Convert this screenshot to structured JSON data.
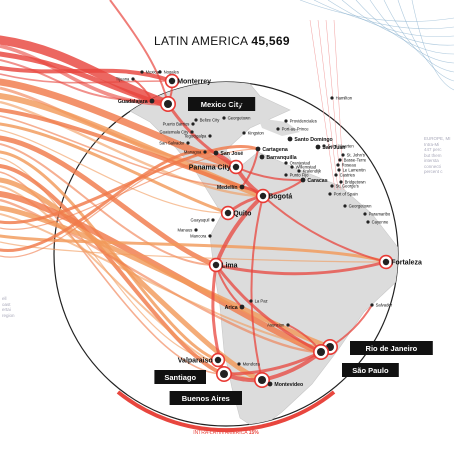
{
  "title": {
    "region": "LATIN AMERICA",
    "total": "45,569"
  },
  "footer": {
    "label": "INTRA-LATIN AMERICA",
    "value": "15%"
  },
  "side_notes": {
    "right": [
      "EUROPE, MI",
      "Intra-Mi",
      "447 perc",
      "but them",
      "intersta",
      "connecti",
      "percent c"
    ],
    "left": [
      "ell",
      "oast",
      "ertai",
      "region"
    ]
  },
  "colors": {
    "route_hot": "#e8463e",
    "route_warm": "#f07a4a",
    "route_orange": "#f29a5a",
    "hub": "#e83a34",
    "globe_fill": "#ffffff",
    "land": "#dcdcdc",
    "box_label": "#111111",
    "accent_arc": "#e8463e",
    "blue_lines": "#7aa6c8"
  },
  "cities": [
    {
      "id": "mexicali",
      "name": "Mexicali",
      "size": "xs"
    },
    {
      "id": "nogales",
      "name": "Nogales",
      "size": "xs"
    },
    {
      "id": "tijuana",
      "name": "Tijuana",
      "size": "xs"
    },
    {
      "id": "monterrey",
      "name": "Monterrey",
      "size": "m"
    },
    {
      "id": "guadalajara",
      "name": "Guadalajara",
      "size": "s"
    },
    {
      "id": "mexico_city",
      "name": "Mexico City",
      "size": "boxed"
    },
    {
      "id": "nassau",
      "name": "Nassau",
      "size": "xs"
    },
    {
      "id": "hamilton",
      "name": "Hamilton",
      "size": "xs"
    },
    {
      "id": "georgetown_ky",
      "name": "Georgetown",
      "size": "xs"
    },
    {
      "id": "providenciales",
      "name": "Providenciales",
      "size": "xs"
    },
    {
      "id": "belize_city",
      "name": "Belize City",
      "size": "xs"
    },
    {
      "id": "puerto_barrios",
      "name": "Puerto Barrios",
      "size": "xs"
    },
    {
      "id": "guatemala_city",
      "name": "Guatemala City",
      "size": "xs"
    },
    {
      "id": "tegucigalpa",
      "name": "Tegucigalpa",
      "size": "xs"
    },
    {
      "id": "kingston",
      "name": "Kingston",
      "size": "xs"
    },
    {
      "id": "port_au_prince",
      "name": "Port-au-Prince",
      "size": "xs"
    },
    {
      "id": "san_salvador",
      "name": "San Salvador",
      "size": "xs"
    },
    {
      "id": "santo_domingo",
      "name": "Santo Domingo",
      "size": "s"
    },
    {
      "id": "managua",
      "name": "Managua",
      "size": "xs"
    },
    {
      "id": "san_juan",
      "name": "San Juan",
      "size": "s"
    },
    {
      "id": "san_jose",
      "name": "San José",
      "size": "s"
    },
    {
      "id": "cartagena",
      "name": "Cartagena",
      "size": "s"
    },
    {
      "id": "barranquilla",
      "name": "Barranquilla",
      "size": "s"
    },
    {
      "id": "oranjestad",
      "name": "Oranjestad",
      "size": "xs"
    },
    {
      "id": "willemstad",
      "name": "Willemstad",
      "size": "xs"
    },
    {
      "id": "kralendijk",
      "name": "Kralendijk",
      "size": "xs"
    },
    {
      "id": "panama_city",
      "name": "Panama City",
      "size": "m"
    },
    {
      "id": "punto_fijo",
      "name": "Punto Fijo",
      "size": "xs"
    },
    {
      "id": "caracas",
      "name": "Caracas",
      "size": "s"
    },
    {
      "id": "saint_maarten",
      "name": "Saint Maarten",
      "size": "xs"
    },
    {
      "id": "st_johns",
      "name": "St. John's",
      "size": "xs"
    },
    {
      "id": "basse_terre",
      "name": "Basse-Terre",
      "size": "xs"
    },
    {
      "id": "roseau",
      "name": "Roseau",
      "size": "xs"
    },
    {
      "id": "le_lamentin",
      "name": "Le Lamentin",
      "size": "xs"
    },
    {
      "id": "castries",
      "name": "Castries",
      "size": "xs"
    },
    {
      "id": "bridgetown",
      "name": "Bridgetown",
      "size": "xs"
    },
    {
      "id": "st_georges",
      "name": "St. George's",
      "size": "xs"
    },
    {
      "id": "port_of_spain",
      "name": "Port of Spain",
      "size": "xs"
    },
    {
      "id": "medellin",
      "name": "Medellín",
      "size": "s"
    },
    {
      "id": "bogota",
      "name": "Bogotá",
      "size": "m"
    },
    {
      "id": "georgetown_gy",
      "name": "Georgetown",
      "size": "xs"
    },
    {
      "id": "paramaribo",
      "name": "Paramaribo",
      "size": "xs"
    },
    {
      "id": "cayenne",
      "name": "Cayenne",
      "size": "xs"
    },
    {
      "id": "quito",
      "name": "Quito",
      "size": "m"
    },
    {
      "id": "guayaquil",
      "name": "Guayaquil",
      "size": "xs"
    },
    {
      "id": "manaus",
      "name": "Manaus",
      "size": "xs"
    },
    {
      "id": "mancora",
      "name": "Mancora",
      "size": "xs"
    },
    {
      "id": "fortaleza",
      "name": "Fortaleza",
      "size": "m"
    },
    {
      "id": "lima",
      "name": "Lima",
      "size": "m"
    },
    {
      "id": "la_paz",
      "name": "La Paz",
      "size": "xs"
    },
    {
      "id": "arica",
      "name": "Arica",
      "size": "s"
    },
    {
      "id": "salvador",
      "name": "Salvador",
      "size": "xs"
    },
    {
      "id": "asuncion",
      "name": "Asuncion",
      "size": "xs"
    },
    {
      "id": "valparaiso",
      "name": "Valparaiso",
      "size": "m"
    },
    {
      "id": "mendoza",
      "name": "Mendoza",
      "size": "xs"
    },
    {
      "id": "rio_de_janeiro",
      "name": "Rio de Janeiro",
      "size": "boxed"
    },
    {
      "id": "sao_paulo",
      "name": "São Paulo",
      "size": "boxed"
    },
    {
      "id": "santiago",
      "name": "Santiago",
      "size": "boxed"
    },
    {
      "id": "buenos_aires",
      "name": "Buenos Aires",
      "size": "boxed"
    },
    {
      "id": "montevideo",
      "name": "Montevideo",
      "size": "s"
    }
  ]
}
